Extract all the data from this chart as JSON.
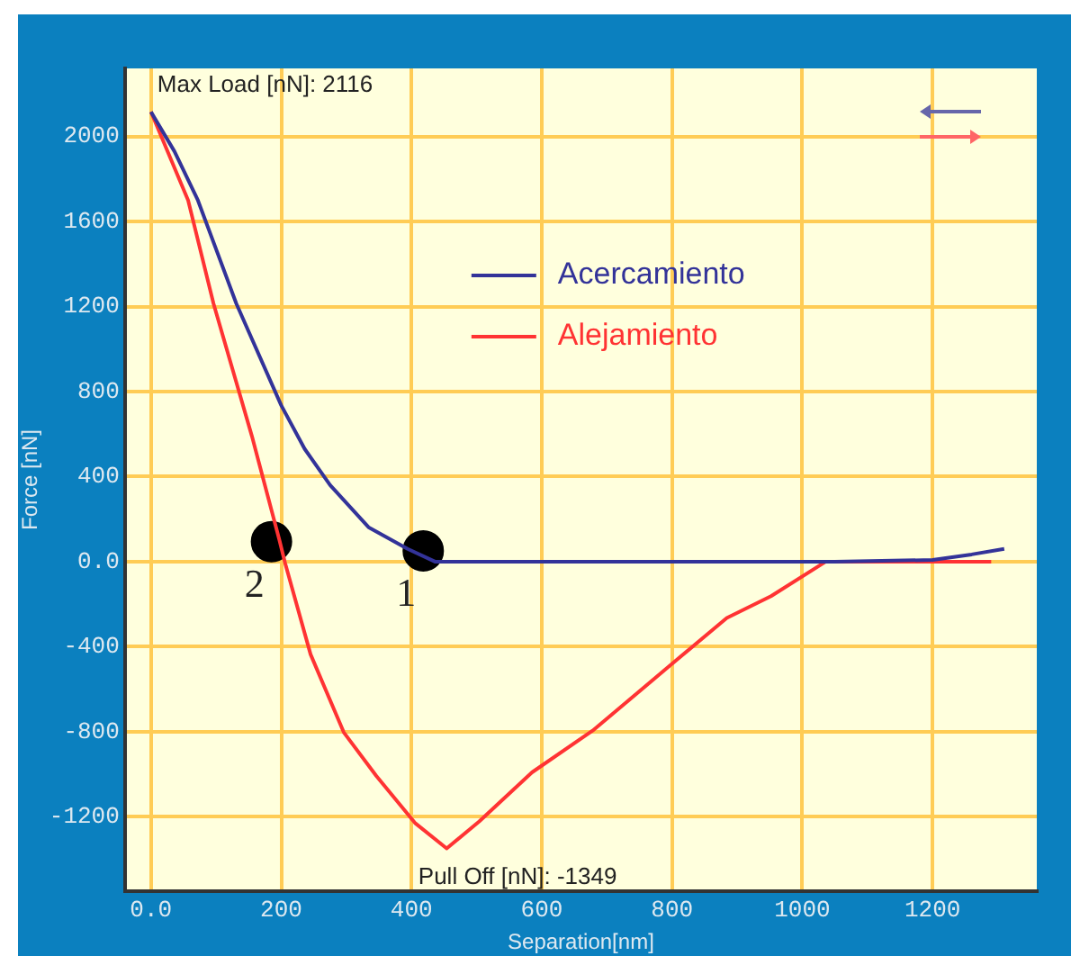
{
  "chart_data": {
    "type": "line",
    "xlabel": "Separation[nm]",
    "ylabel": "Force [nN]",
    "xlim": [
      -40,
      1360
    ],
    "ylim": [
      -1550,
      2320
    ],
    "xticks": [
      {
        "value": 0,
        "label": "0.0"
      },
      200,
      400,
      600,
      800,
      1000,
      1200
    ],
    "yticks": [
      -1200,
      -800,
      -400,
      {
        "value": 0,
        "label": "0.0"
      },
      400,
      800,
      1200,
      1600,
      2000
    ],
    "grid": true,
    "legend": "right",
    "marker": "none",
    "line_style": "solid",
    "series": [
      {
        "name": "Acercamiento",
        "color": "#333399",
        "x": [
          0,
          36,
          72,
          131,
          200,
          236,
          275,
          334,
          394,
          436,
          600,
          800,
          1000,
          1050,
          1200,
          1260,
          1310
        ],
        "values": [
          2116,
          1930,
          1700,
          1214,
          735,
          530,
          360,
          162,
          60,
          0,
          0,
          0,
          0,
          0,
          8,
          34,
          60
        ]
      },
      {
        "name": "Alejamiento",
        "color": "#ff3333",
        "x": [
          0,
          57,
          96,
          155,
          197,
          206,
          245,
          296,
          346,
          406,
          454,
          504,
          585,
          678,
          794,
          884,
          952,
          1036,
          1200,
          1290
        ],
        "values": [
          2116,
          1700,
          1214,
          590,
          103,
          -8,
          -436,
          -803,
          -1008,
          -1231,
          -1349,
          -1222,
          -991,
          -795,
          -496,
          -265,
          -162,
          0,
          0,
          0
        ]
      },
      {
        "type": "scatter",
        "color": "#000000",
        "marker": "circle",
        "x": [
          185,
          418
        ],
        "values": [
          94,
          51
        ]
      }
    ],
    "annotations": [
      "Max Load [nN]: 2116",
      "Pull Off [nN]: -1349",
      {
        "text": "2",
        "x": 185,
        "y": 94
      },
      {
        "text": "1",
        "x": 418,
        "y": 51
      }
    ]
  }
}
